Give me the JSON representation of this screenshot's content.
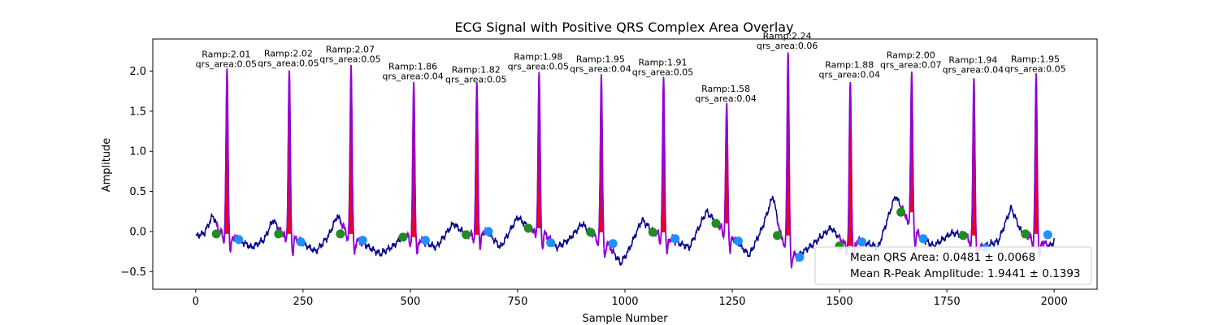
{
  "chart_data": {
    "type": "line",
    "title": "ECG Signal with Positive QRS Complex Area Overlay",
    "xlabel": "Sample Number",
    "ylabel": "Amplitude",
    "xlim": [
      -100,
      2100
    ],
    "ylim": [
      -0.72,
      2.4
    ],
    "xticks": [
      0,
      250,
      500,
      750,
      1000,
      1250,
      1500,
      1750,
      2000
    ],
    "yticks": [
      -0.5,
      0.0,
      0.5,
      1.0,
      1.5,
      2.0
    ],
    "xtick_labels": [
      "0",
      "250",
      "500",
      "750",
      "1000",
      "1250",
      "1500",
      "1750",
      "2000"
    ],
    "ytick_labels": [
      "−0.5",
      "0.0",
      "0.5",
      "1.0",
      "1.5",
      "2.0"
    ],
    "grid": false,
    "legend_position": "bottom-right",
    "colors": {
      "signal": "#00008b",
      "qrs_segment": "#9400d3",
      "qrs_area_fill": "#ff0000",
      "q_point": "#228b22",
      "s_point": "#1e90ff"
    },
    "baseline_points": [
      [
        0,
        -0.06
      ],
      [
        20,
        -0.02
      ],
      [
        40,
        0.2
      ],
      [
        55,
        0.0
      ],
      [
        100,
        -0.1
      ],
      [
        130,
        -0.2
      ],
      [
        160,
        -0.1
      ],
      [
        180,
        0.15
      ],
      [
        200,
        -0.02
      ],
      [
        230,
        -0.08
      ],
      [
        280,
        -0.25
      ],
      [
        310,
        -0.05
      ],
      [
        330,
        0.2
      ],
      [
        350,
        0.0
      ],
      [
        380,
        -0.12
      ],
      [
        430,
        -0.28
      ],
      [
        460,
        -0.18
      ],
      [
        485,
        -0.05
      ],
      [
        520,
        -0.1
      ],
      [
        560,
        -0.2
      ],
      [
        600,
        0.1
      ],
      [
        630,
        -0.04
      ],
      [
        680,
        0.0
      ],
      [
        710,
        -0.2
      ],
      [
        750,
        0.18
      ],
      [
        780,
        0.03
      ],
      [
        810,
        0.0
      ],
      [
        840,
        -0.2
      ],
      [
        870,
        -0.1
      ],
      [
        900,
        0.1
      ],
      [
        920,
        -0.02
      ],
      [
        960,
        -0.15
      ],
      [
        990,
        -0.4
      ],
      [
        1010,
        -0.22
      ],
      [
        1040,
        0.15
      ],
      [
        1065,
        0.0
      ],
      [
        1100,
        -0.08
      ],
      [
        1150,
        -0.2
      ],
      [
        1190,
        0.25
      ],
      [
        1215,
        0.1
      ],
      [
        1260,
        -0.12
      ],
      [
        1290,
        -0.3
      ],
      [
        1320,
        0.05
      ],
      [
        1345,
        0.45
      ],
      [
        1362,
        -0.04
      ],
      [
        1400,
        -0.32
      ],
      [
        1440,
        -0.15
      ],
      [
        1480,
        0.05
      ],
      [
        1510,
        -0.15
      ],
      [
        1550,
        -0.12
      ],
      [
        1590,
        -0.2
      ],
      [
        1630,
        0.45
      ],
      [
        1650,
        0.24
      ],
      [
        1690,
        -0.08
      ],
      [
        1720,
        -0.18
      ],
      [
        1760,
        -0.02
      ],
      [
        1790,
        -0.04
      ],
      [
        1830,
        -0.2
      ],
      [
        1870,
        -0.12
      ],
      [
        1900,
        0.3
      ],
      [
        1925,
        -0.03
      ],
      [
        1960,
        -0.1
      ],
      [
        1990,
        -0.18
      ],
      [
        2000,
        -0.12
      ]
    ],
    "beats": [
      {
        "r_x": 73,
        "r_peak": 2.01,
        "qrs_area": 0.05,
        "q_x": 48,
        "q_y": -0.03,
        "s_x": 100,
        "s_y": -0.1,
        "label_top": "Ramp:2.01",
        "label_bottom": "qrs_area:0.05"
      },
      {
        "r_x": 218,
        "r_peak": 2.02,
        "qrs_area": 0.05,
        "q_x": 193,
        "q_y": -0.03,
        "s_x": 245,
        "s_y": -0.13,
        "label_top": "Ramp:2.02",
        "label_bottom": "qrs_area:0.05"
      },
      {
        "r_x": 362,
        "r_peak": 2.07,
        "qrs_area": 0.05,
        "q_x": 337,
        "q_y": -0.03,
        "s_x": 389,
        "s_y": -0.11,
        "label_top": "Ramp:2.07",
        "label_bottom": "qrs_area:0.05"
      },
      {
        "r_x": 508,
        "r_peak": 1.86,
        "qrs_area": 0.04,
        "q_x": 483,
        "q_y": -0.07,
        "s_x": 535,
        "s_y": -0.11,
        "label_top": "Ramp:1.86",
        "label_bottom": "qrs_area:0.04"
      },
      {
        "r_x": 655,
        "r_peak": 1.82,
        "qrs_area": 0.05,
        "q_x": 630,
        "q_y": -0.04,
        "s_x": 682,
        "s_y": 0.0,
        "label_top": "Ramp:1.82",
        "label_bottom": "qrs_area:0.05"
      },
      {
        "r_x": 800,
        "r_peak": 1.98,
        "qrs_area": 0.05,
        "q_x": 775,
        "q_y": 0.04,
        "s_x": 827,
        "s_y": -0.14,
        "label_top": "Ramp:1.98",
        "label_bottom": "qrs_area:0.05"
      },
      {
        "r_x": 945,
        "r_peak": 1.95,
        "qrs_area": 0.04,
        "q_x": 920,
        "q_y": -0.01,
        "s_x": 972,
        "s_y": -0.15,
        "label_top": "Ramp:1.95",
        "label_bottom": "qrs_area:0.04"
      },
      {
        "r_x": 1090,
        "r_peak": 1.91,
        "qrs_area": 0.05,
        "q_x": 1065,
        "q_y": -0.01,
        "s_x": 1117,
        "s_y": -0.09,
        "label_top": "Ramp:1.91",
        "label_bottom": "qrs_area:0.05"
      },
      {
        "r_x": 1237,
        "r_peak": 1.58,
        "qrs_area": 0.04,
        "q_x": 1212,
        "q_y": 0.1,
        "s_x": 1264,
        "s_y": -0.12,
        "label_top": "Ramp:1.58",
        "label_bottom": "qrs_area:0.04"
      },
      {
        "r_x": 1380,
        "r_peak": 2.24,
        "qrs_area": 0.06,
        "q_x": 1355,
        "q_y": -0.05,
        "s_x": 1407,
        "s_y": -0.32,
        "label_top": "Ramp:2.24",
        "label_bottom": "qrs_area:0.06"
      },
      {
        "r_x": 1525,
        "r_peak": 1.88,
        "qrs_area": 0.04,
        "q_x": 1500,
        "q_y": -0.18,
        "s_x": 1552,
        "s_y": -0.13,
        "label_top": "Ramp:1.88",
        "label_bottom": "qrs_area:0.04"
      },
      {
        "r_x": 1668,
        "r_peak": 2.0,
        "qrs_area": 0.07,
        "q_x": 1643,
        "q_y": 0.24,
        "s_x": 1695,
        "s_y": -0.09,
        "label_top": "Ramp:2.00",
        "label_bottom": "qrs_area:0.07"
      },
      {
        "r_x": 1813,
        "r_peak": 1.94,
        "qrs_area": 0.04,
        "q_x": 1788,
        "q_y": -0.05,
        "s_x": 1840,
        "s_y": -0.21,
        "label_top": "Ramp:1.94",
        "label_bottom": "qrs_area:0.04"
      },
      {
        "r_x": 1958,
        "r_peak": 1.95,
        "qrs_area": 0.05,
        "q_x": 1933,
        "q_y": -0.03,
        "s_x": 1985,
        "s_y": -0.04,
        "label_top": "Ramp:1.95",
        "label_bottom": "qrs_area:0.05"
      }
    ],
    "legend": [
      "Mean QRS Area: 0.0481 ± 0.0068",
      "Mean R-Peak Amplitude: 1.9441 ± 0.1393"
    ]
  }
}
